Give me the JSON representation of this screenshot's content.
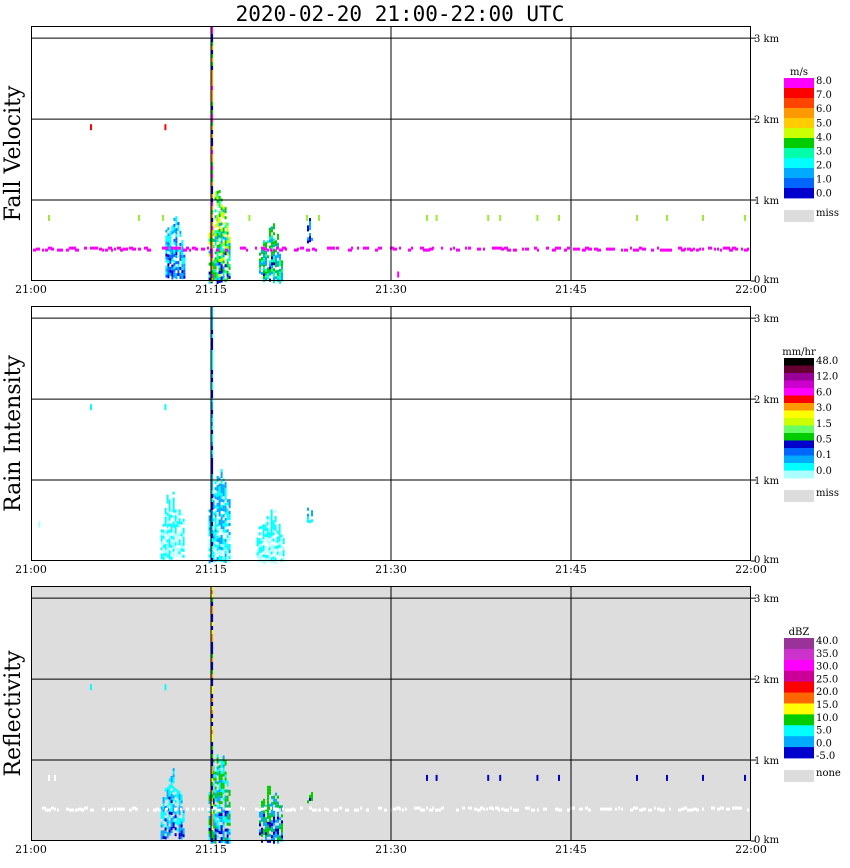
{
  "title": "2020-02-20  21:00-22:00 UTC",
  "chart_data": [
    {
      "type": "heatmap",
      "ylabel": "Fall Velocity",
      "x_ticks": [
        "21:00",
        "21:15",
        "21:30",
        "21:45",
        "22:00"
      ],
      "y_ticks": [
        "0 km",
        "1 km",
        "2 km",
        "3 km"
      ],
      "xlim": [
        "21:00",
        "22:00"
      ],
      "ylim_km": [
        0,
        3.15
      ],
      "background": "#ffffff",
      "legend": {
        "unit": "m/s",
        "labels": [
          "8.0",
          "7.0",
          "6.0",
          "5.0",
          "4.0",
          "3.0",
          "2.0",
          "1.0",
          "0.0"
        ],
        "colors": [
          "#ff00ff",
          "#ff0000",
          "#ff4400",
          "#ff9900",
          "#ffcc00",
          "#ccff00",
          "#00cc00",
          "#00ffaa",
          "#00ffff",
          "#00aaff",
          "#0066ff",
          "#0000cc"
        ],
        "miss_label": "miss",
        "miss_color": "#dddddd"
      },
      "features": [
        {
          "kind": "column",
          "t0": 11.2,
          "t1": 12.8,
          "h0": 0.05,
          "h1": 0.95,
          "colors": [
            "#0000cc",
            "#0066ff",
            "#00aaff",
            "#00ffff"
          ]
        },
        {
          "kind": "column",
          "t0": 14.8,
          "t1": 16.6,
          "h0": 0.0,
          "h1": 1.2,
          "colors": [
            "#0000cc",
            "#00aaff",
            "#00ffaa",
            "#00cc00",
            "#ccff00"
          ]
        },
        {
          "kind": "column",
          "t0": 19.0,
          "t1": 21.0,
          "h0": 0.0,
          "h1": 0.75,
          "colors": [
            "#0000cc",
            "#00aaff",
            "#00ffaa",
            "#00cc00"
          ]
        },
        {
          "kind": "column",
          "t0": 23.0,
          "t1": 23.5,
          "h0": 0.5,
          "h1": 0.8,
          "colors": [
            "#0000cc",
            "#00aaff"
          ]
        },
        {
          "kind": "spike",
          "t": 15.05,
          "h0": 0.0,
          "h1": 3.15,
          "colors": [
            "#ff00ff",
            "#ff9900",
            "#0000cc",
            "#00cc00"
          ]
        },
        {
          "kind": "band",
          "h": 0.4,
          "color": "#ff00ff"
        },
        {
          "kind": "dots",
          "h": 0.78,
          "color": "#99ee33",
          "times": [
            1.5,
            9.0,
            11.0,
            15.5,
            18.2,
            23.0,
            24.0,
            33.0,
            33.8,
            38.1,
            39.1,
            42.2,
            44.0,
            50.5,
            53.0,
            56.0,
            59.5
          ]
        },
        {
          "kind": "dots",
          "h": 1.9,
          "color": "#ff0000",
          "times": [
            5.0,
            11.2
          ]
        },
        {
          "kind": "dots",
          "h": 0.08,
          "color": "#ff00ff",
          "times": [
            30.6
          ]
        }
      ]
    },
    {
      "type": "heatmap",
      "ylabel": "Rain Intensity",
      "x_ticks": [
        "21:00",
        "21:15",
        "21:30",
        "21:45",
        "22:00"
      ],
      "y_ticks": [
        "0 km",
        "1 km",
        "2 km",
        "3 km"
      ],
      "xlim": [
        "21:00",
        "22:00"
      ],
      "ylim_km": [
        0,
        3.15
      ],
      "background": "#ffffff",
      "legend": {
        "unit": "mm/hr",
        "labels": [
          "48.0",
          "12.0",
          "6.0",
          "3.0",
          "1.5",
          "0.5",
          "0.1",
          "0.0"
        ],
        "colors": [
          "#000000",
          "#660033",
          "#990099",
          "#cc00cc",
          "#ff00ff",
          "#ff0000",
          "#ff9900",
          "#ffff00",
          "#ccff00",
          "#66ff66",
          "#00cc00",
          "#0000cc",
          "#0066ff",
          "#00aaff",
          "#00ffff",
          "#aaffff"
        ],
        "miss_label": "miss",
        "miss_color": "#dddddd"
      },
      "features": [
        {
          "kind": "column",
          "t0": 10.8,
          "t1": 12.8,
          "h0": 0.05,
          "h1": 0.9,
          "colors": [
            "#aaffff",
            "#00ffff"
          ]
        },
        {
          "kind": "column",
          "t0": 14.8,
          "t1": 16.6,
          "h0": 0.0,
          "h1": 1.2,
          "colors": [
            "#aaffff",
            "#00ffff",
            "#00aaff"
          ]
        },
        {
          "kind": "column",
          "t0": 18.8,
          "t1": 21.0,
          "h0": 0.0,
          "h1": 0.75,
          "colors": [
            "#aaffff",
            "#00ffff"
          ]
        },
        {
          "kind": "column",
          "t0": 23.0,
          "t1": 23.5,
          "h0": 0.5,
          "h1": 0.75,
          "colors": [
            "#00ffff",
            "#00aaff"
          ]
        },
        {
          "kind": "spike",
          "t": 15.05,
          "h0": 0.0,
          "h1": 3.15,
          "colors": [
            "#00ffff",
            "#0000cc",
            "#00aaff"
          ]
        },
        {
          "kind": "dots",
          "h": 1.9,
          "color": "#00ffff",
          "times": [
            5.0,
            11.2
          ]
        },
        {
          "kind": "dots",
          "h": 0.45,
          "color": "#aaffff",
          "times": [
            0.7
          ]
        }
      ]
    },
    {
      "type": "heatmap",
      "ylabel": "Reflectivity",
      "x_ticks": [
        "21:00",
        "21:15",
        "21:30",
        "21:45",
        "22:00"
      ],
      "y_ticks": [
        "0 km",
        "1 km",
        "2 km",
        "3 km"
      ],
      "xlim": [
        "21:00",
        "22:00"
      ],
      "ylim_km": [
        0,
        3.15
      ],
      "background": "#dddddd",
      "legend": {
        "unit": "dBZ",
        "labels": [
          "40.0",
          "35.0",
          "30.0",
          "25.0",
          "20.0",
          "15.0",
          "10.0",
          "5.0",
          "0.0",
          "-5.0"
        ],
        "colors": [
          "#993399",
          "#cc33cc",
          "#ff00ff",
          "#cc0099",
          "#ff0000",
          "#ff6600",
          "#ffff00",
          "#00cc00",
          "#00ffff",
          "#00aaff",
          "#0000cc"
        ],
        "miss_label": "none",
        "miss_color": "#dddddd"
      },
      "features": [
        {
          "kind": "column",
          "t0": 10.8,
          "t1": 12.8,
          "h0": 0.05,
          "h1": 0.95,
          "colors": [
            "#0000cc",
            "#00aaff",
            "#00ffff"
          ]
        },
        {
          "kind": "column",
          "t0": 14.8,
          "t1": 16.6,
          "h0": 0.0,
          "h1": 1.2,
          "colors": [
            "#0000cc",
            "#00aaff",
            "#00ffff",
            "#00cc00"
          ]
        },
        {
          "kind": "column",
          "t0": 19.0,
          "t1": 21.0,
          "h0": 0.0,
          "h1": 0.75,
          "colors": [
            "#0000cc",
            "#00aaff",
            "#00cc00"
          ]
        },
        {
          "kind": "column",
          "t0": 23.0,
          "t1": 23.5,
          "h0": 0.5,
          "h1": 0.8,
          "colors": [
            "#0000cc",
            "#00cc00"
          ]
        },
        {
          "kind": "spike",
          "t": 15.05,
          "h0": 0.0,
          "h1": 3.15,
          "colors": [
            "#ffff00",
            "#00cc00",
            "#0000cc",
            "#ff9900"
          ]
        },
        {
          "kind": "band",
          "h": 0.4,
          "color": "#ffffff"
        },
        {
          "kind": "dots",
          "h": 0.78,
          "color": "#ffffff",
          "times": [
            1.5,
            2.0
          ]
        },
        {
          "kind": "dots",
          "h": 0.78,
          "color": "#0000cc",
          "times": [
            33.0,
            33.8,
            38.1,
            39.1,
            42.2,
            44.0,
            50.5,
            53.0,
            56.0,
            59.5
          ]
        },
        {
          "kind": "dots",
          "h": 1.9,
          "color": "#00ffff",
          "times": [
            5.0,
            11.2
          ]
        }
      ]
    }
  ]
}
